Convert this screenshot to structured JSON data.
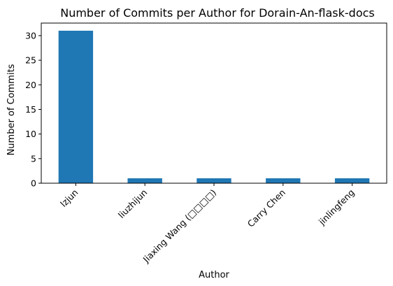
{
  "chart_data": {
    "type": "bar",
    "title": "Number of Commits per Author for Dorain-An-flask-docs",
    "xlabel": "Author",
    "ylabel": "Number of Commits",
    "categories": [
      "lzjun",
      "liuzhijun",
      "Jiaxing Wang (□□□□)",
      "Carry Chen",
      "jinlingfeng"
    ],
    "values": [
      31,
      1,
      1,
      1,
      1
    ],
    "ylim": [
      0,
      32.55
    ],
    "yticks": [
      0,
      5,
      10,
      15,
      20,
      25,
      30
    ],
    "grid": false,
    "bar_color": "#1f77b4"
  }
}
